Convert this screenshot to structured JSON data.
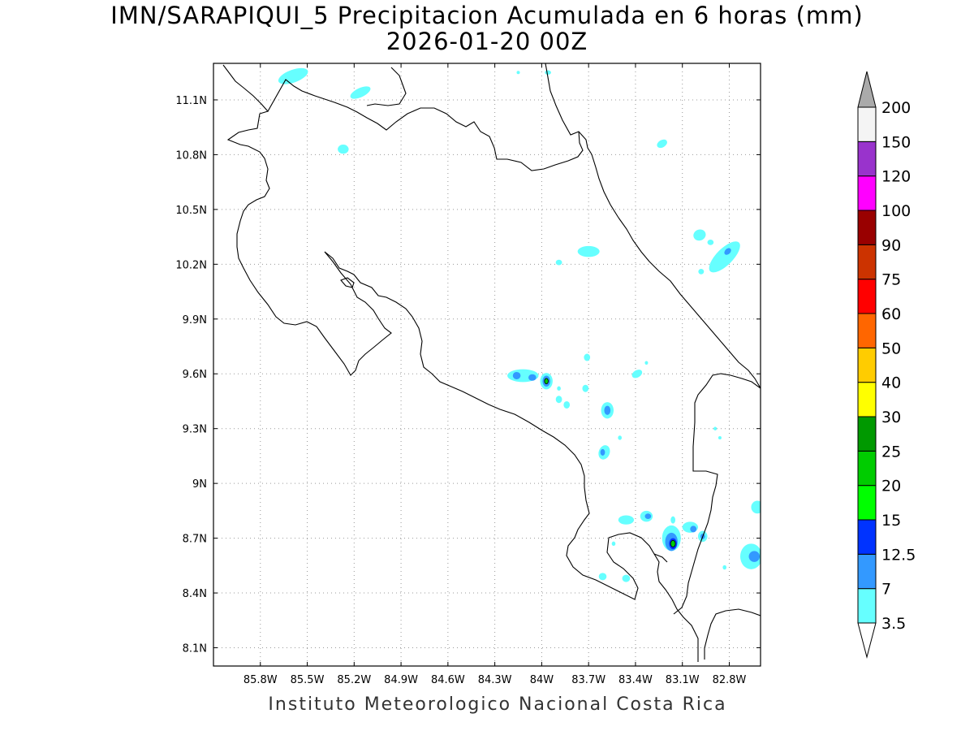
{
  "title": {
    "line1": "IMN/SARAPIQUI_5 Precipitacion Acumulada en 6 horas (mm)",
    "line2": "2026-01-20 00Z"
  },
  "footer": "Instituto Meteorologico Nacional Costa Rica",
  "map": {
    "lon_range": [
      -86.1,
      -82.6
    ],
    "lat_range": [
      8.0,
      11.3
    ],
    "lon_ticks": [
      {
        "value": -85.8,
        "label": "85.8W"
      },
      {
        "value": -85.5,
        "label": "85.5W"
      },
      {
        "value": -85.2,
        "label": "85.2W"
      },
      {
        "value": -84.9,
        "label": "84.9W"
      },
      {
        "value": -84.6,
        "label": "84.6W"
      },
      {
        "value": -84.3,
        "label": "84.3W"
      },
      {
        "value": -84.0,
        "label": "84W"
      },
      {
        "value": -83.7,
        "label": "83.7W"
      },
      {
        "value": -83.4,
        "label": "83.4W"
      },
      {
        "value": -83.1,
        "label": "83.1W"
      },
      {
        "value": -82.8,
        "label": "82.8W"
      }
    ],
    "lat_ticks": [
      {
        "value": 8.1,
        "label": "8.1N"
      },
      {
        "value": 8.4,
        "label": "8.4N"
      },
      {
        "value": 8.7,
        "label": "8.7N"
      },
      {
        "value": 9.0,
        "label": "9N"
      },
      {
        "value": 9.3,
        "label": "9.3N"
      },
      {
        "value": 9.6,
        "label": "9.6N"
      },
      {
        "value": 9.9,
        "label": "9.9N"
      },
      {
        "value": 10.2,
        "label": "10.2N"
      },
      {
        "value": 10.5,
        "label": "10.5N"
      },
      {
        "value": 10.8,
        "label": "10.8N"
      },
      {
        "value": 11.1,
        "label": "11.1N"
      }
    ],
    "grid": "dotted"
  },
  "colorbar": {
    "levels": [
      "3.5",
      "7",
      "12.5",
      "15",
      "20",
      "25",
      "30",
      "40",
      "50",
      "60",
      "75",
      "90",
      "100",
      "120",
      "150",
      "200"
    ],
    "colors": [
      "#66ffff",
      "#3399ff",
      "#0033ff",
      "#00ff00",
      "#00cc00",
      "#009900",
      "#ffff00",
      "#ffcc00",
      "#ff6600",
      "#ff0000",
      "#cc3300",
      "#990000",
      "#ff00ff",
      "#9933cc",
      "#f4f4f4",
      "#aaaaaa"
    ],
    "upper_arrow_color": "#aaaaaa",
    "lower_arrow_color": "#ffffff"
  },
  "precip_cells": [
    {
      "lon": -85.59,
      "lat": 11.23,
      "rx": 0.1,
      "ry": 0.035,
      "rot": -20,
      "level": 0
    },
    {
      "lon": -85.16,
      "lat": 11.14,
      "rx": 0.07,
      "ry": 0.025,
      "rot": -25,
      "level": 0
    },
    {
      "lon": -85.27,
      "lat": 10.83,
      "rx": 0.035,
      "ry": 0.025,
      "rot": 0,
      "level": 0
    },
    {
      "lon": -84.15,
      "lat": 11.25,
      "rx": 0.01,
      "ry": 0.008,
      "rot": 0,
      "level": 0
    },
    {
      "lon": -83.96,
      "lat": 11.25,
      "rx": 0.02,
      "ry": 0.012,
      "rot": 0,
      "level": 0
    },
    {
      "lon": -83.23,
      "lat": 10.86,
      "rx": 0.035,
      "ry": 0.02,
      "rot": -30,
      "level": 0
    },
    {
      "lon": -82.99,
      "lat": 10.36,
      "rx": 0.04,
      "ry": 0.03,
      "rot": -20,
      "level": 0
    },
    {
      "lon": -82.83,
      "lat": 10.24,
      "rx": 0.13,
      "ry": 0.045,
      "rot": -45,
      "level": 0
    },
    {
      "lon": -82.81,
      "lat": 10.27,
      "rx": 0.025,
      "ry": 0.015,
      "rot": -45,
      "level": 1
    },
    {
      "lon": -82.92,
      "lat": 10.32,
      "rx": 0.02,
      "ry": 0.015,
      "rot": 0,
      "level": 0
    },
    {
      "lon": -82.98,
      "lat": 10.16,
      "rx": 0.018,
      "ry": 0.015,
      "rot": 0,
      "level": 0
    },
    {
      "lon": -83.7,
      "lat": 10.27,
      "rx": 0.07,
      "ry": 0.03,
      "rot": 0,
      "level": 0
    },
    {
      "lon": -83.89,
      "lat": 10.21,
      "rx": 0.02,
      "ry": 0.015,
      "rot": 0,
      "level": 0
    },
    {
      "lon": -84.12,
      "lat": 9.59,
      "rx": 0.1,
      "ry": 0.035,
      "rot": 0,
      "level": 0
    },
    {
      "lon": -84.16,
      "lat": 9.59,
      "rx": 0.025,
      "ry": 0.02,
      "rot": 0,
      "level": 1
    },
    {
      "lon": -84.06,
      "lat": 9.58,
      "rx": 0.025,
      "ry": 0.018,
      "rot": 0,
      "level": 1
    },
    {
      "lon": -83.97,
      "lat": 9.56,
      "rx": 0.04,
      "ry": 0.045,
      "rot": 0,
      "level": 0
    },
    {
      "lon": -83.97,
      "lat": 9.56,
      "rx": 0.025,
      "ry": 0.03,
      "rot": 0,
      "level": 1
    },
    {
      "lon": -83.97,
      "lat": 9.56,
      "rx": 0.012,
      "ry": 0.015,
      "rot": 0,
      "level": 4
    },
    {
      "lon": -83.89,
      "lat": 9.46,
      "rx": 0.02,
      "ry": 0.02,
      "rot": 0,
      "level": 0
    },
    {
      "lon": -83.84,
      "lat": 9.43,
      "rx": 0.02,
      "ry": 0.02,
      "rot": 0,
      "level": 0
    },
    {
      "lon": -83.89,
      "lat": 9.52,
      "rx": 0.012,
      "ry": 0.012,
      "rot": 0,
      "level": 0
    },
    {
      "lon": -83.72,
      "lat": 9.52,
      "rx": 0.02,
      "ry": 0.02,
      "rot": 0,
      "level": 0
    },
    {
      "lon": -83.71,
      "lat": 9.69,
      "rx": 0.02,
      "ry": 0.02,
      "rot": 0,
      "level": 0
    },
    {
      "lon": -83.58,
      "lat": 9.4,
      "rx": 0.04,
      "ry": 0.045,
      "rot": 0,
      "level": 0
    },
    {
      "lon": -83.58,
      "lat": 9.4,
      "rx": 0.02,
      "ry": 0.025,
      "rot": 0,
      "level": 1
    },
    {
      "lon": -83.6,
      "lat": 9.17,
      "rx": 0.035,
      "ry": 0.04,
      "rot": 20,
      "level": 0
    },
    {
      "lon": -83.61,
      "lat": 9.17,
      "rx": 0.015,
      "ry": 0.018,
      "rot": 0,
      "level": 1
    },
    {
      "lon": -83.5,
      "lat": 9.25,
      "rx": 0.012,
      "ry": 0.012,
      "rot": 0,
      "level": 0
    },
    {
      "lon": -83.39,
      "lat": 9.6,
      "rx": 0.035,
      "ry": 0.02,
      "rot": -30,
      "level": 0
    },
    {
      "lon": -83.33,
      "lat": 9.66,
      "rx": 0.01,
      "ry": 0.01,
      "rot": 0,
      "level": 0
    },
    {
      "lon": -82.89,
      "lat": 9.3,
      "rx": 0.01,
      "ry": 0.01,
      "rot": 0,
      "level": 0
    },
    {
      "lon": -83.46,
      "lat": 8.8,
      "rx": 0.05,
      "ry": 0.025,
      "rot": 0,
      "level": 0
    },
    {
      "lon": -83.33,
      "lat": 8.82,
      "rx": 0.04,
      "ry": 0.03,
      "rot": 0,
      "level": 0
    },
    {
      "lon": -83.32,
      "lat": 8.82,
      "rx": 0.02,
      "ry": 0.015,
      "rot": 0,
      "level": 1
    },
    {
      "lon": -83.17,
      "lat": 8.7,
      "rx": 0.06,
      "ry": 0.07,
      "rot": 0,
      "level": 0
    },
    {
      "lon": -83.17,
      "lat": 8.68,
      "rx": 0.04,
      "ry": 0.05,
      "rot": 0,
      "level": 1
    },
    {
      "lon": -83.16,
      "lat": 8.67,
      "rx": 0.025,
      "ry": 0.03,
      "rot": 0,
      "level": 2
    },
    {
      "lon": -83.16,
      "lat": 8.67,
      "rx": 0.015,
      "ry": 0.018,
      "rot": 0,
      "level": 4
    },
    {
      "lon": -83.05,
      "lat": 8.76,
      "rx": 0.05,
      "ry": 0.03,
      "rot": 0,
      "level": 0
    },
    {
      "lon": -83.03,
      "lat": 8.75,
      "rx": 0.02,
      "ry": 0.018,
      "rot": 0,
      "level": 1
    },
    {
      "lon": -82.97,
      "lat": 8.71,
      "rx": 0.03,
      "ry": 0.03,
      "rot": 0,
      "level": 0
    },
    {
      "lon": -82.97,
      "lat": 8.71,
      "rx": 0.015,
      "ry": 0.015,
      "rot": 0,
      "level": 1
    },
    {
      "lon": -83.16,
      "lat": 8.8,
      "rx": 0.015,
      "ry": 0.02,
      "rot": 0,
      "level": 0
    },
    {
      "lon": -83.54,
      "lat": 8.67,
      "rx": 0.012,
      "ry": 0.012,
      "rot": 0,
      "level": 0
    },
    {
      "lon": -83.46,
      "lat": 8.48,
      "rx": 0.025,
      "ry": 0.02,
      "rot": 0,
      "level": 0
    },
    {
      "lon": -83.61,
      "lat": 8.49,
      "rx": 0.025,
      "ry": 0.02,
      "rot": 0,
      "level": 0
    },
    {
      "lon": -82.66,
      "lat": 8.6,
      "rx": 0.07,
      "ry": 0.07,
      "rot": 0,
      "level": 0
    },
    {
      "lon": -82.64,
      "lat": 8.6,
      "rx": 0.035,
      "ry": 0.03,
      "rot": 0,
      "level": 1
    },
    {
      "lon": -82.62,
      "lat": 8.87,
      "rx": 0.04,
      "ry": 0.035,
      "rot": 0,
      "level": 0
    },
    {
      "lon": -82.83,
      "lat": 8.54,
      "rx": 0.012,
      "ry": 0.012,
      "rot": 0,
      "level": 0
    },
    {
      "lon": -82.86,
      "lat": 9.25,
      "rx": 0.008,
      "ry": 0.008,
      "rot": 0,
      "level": 0
    }
  ]
}
